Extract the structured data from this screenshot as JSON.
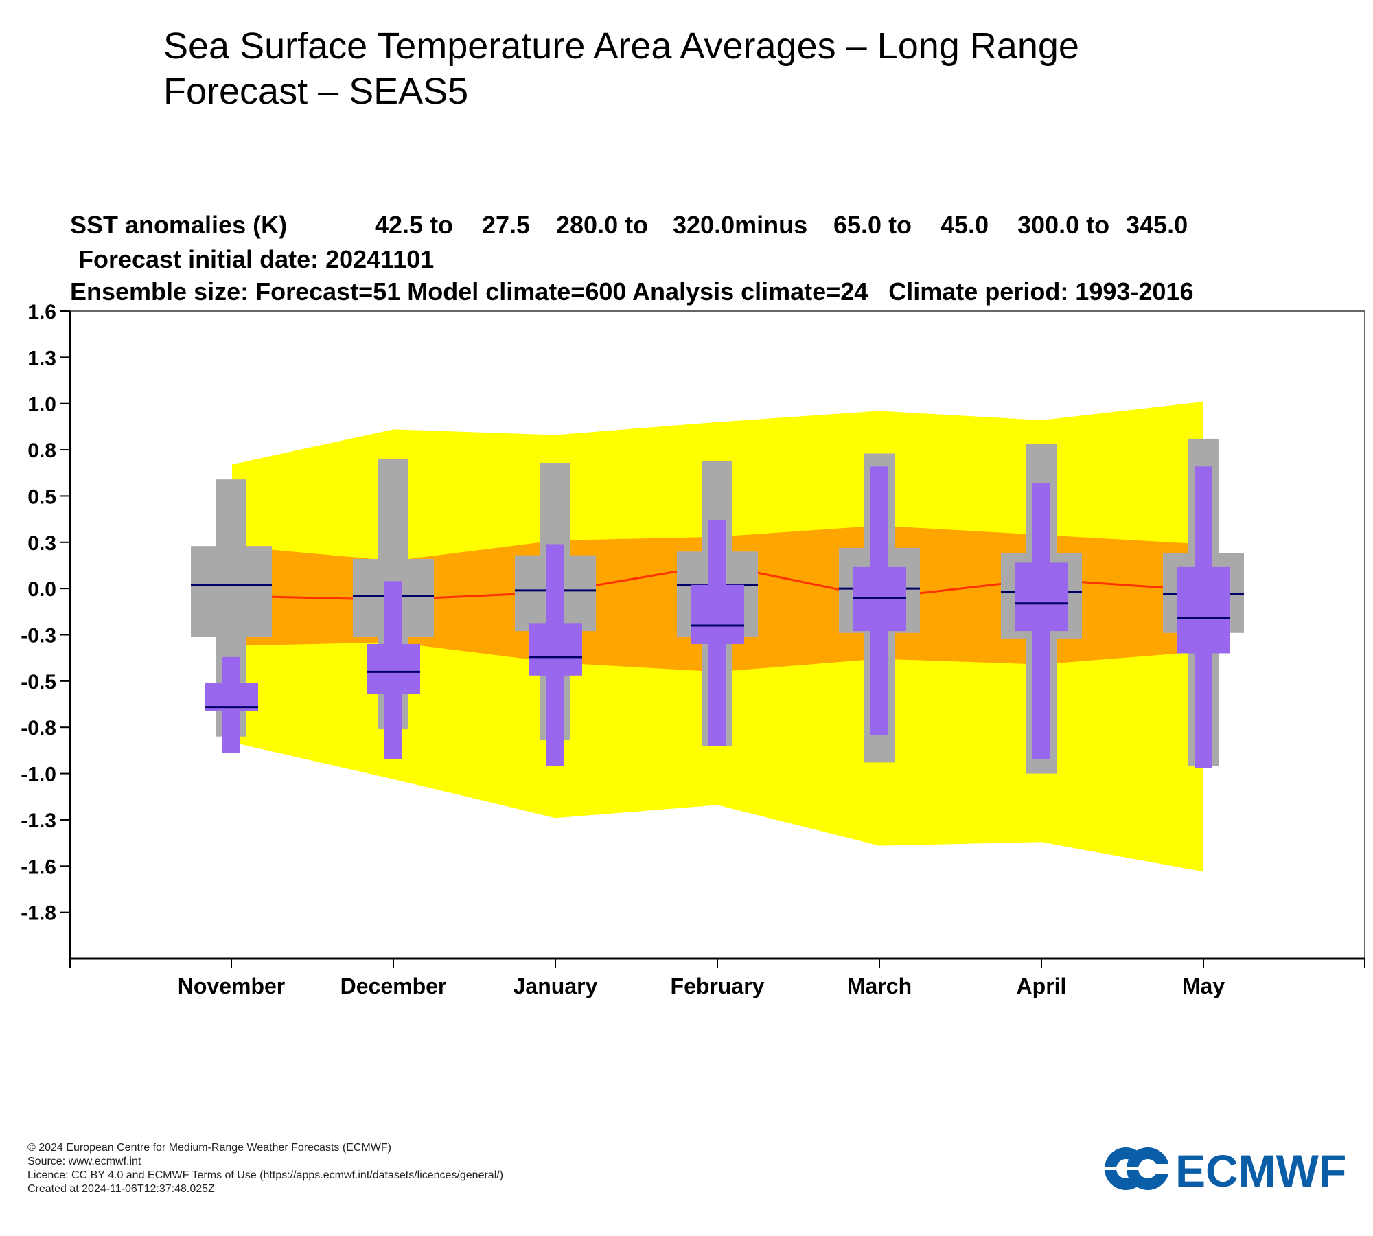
{
  "title": "Sea Surface Temperature Area Averages – Long Range Forecast – SEAS5",
  "header": {
    "line1": [
      "SST anomalies (K)",
      "42.5 to",
      "27.5",
      "280.0 to",
      "320.0minus",
      "65.0 to",
      "45.0",
      "300.0 to",
      "345.0"
    ],
    "line2": "Forecast initial date: 20241101",
    "line3": "Ensemble size: Forecast=51 Model climate=600 Analysis climate=24   Climate period: 1993-2016"
  },
  "chart_data": {
    "type": "box",
    "categories": [
      "November",
      "December",
      "January",
      "February",
      "March",
      "April",
      "May"
    ],
    "y_tick_labels": [
      "1.6",
      "1.3",
      "1.0",
      "0.8",
      "0.5",
      "0.3",
      "0.0",
      "-0.3",
      "-0.5",
      "-0.8",
      "-1.0",
      "-1.3",
      "-1.6",
      "-1.8"
    ],
    "ylim": [
      -1.95,
      1.55
    ],
    "climate_outer_band": {
      "color": "#ffff00",
      "upper": [
        0.72,
        0.91,
        0.88,
        0.95,
        1.01,
        0.96,
        1.06
      ],
      "lower": [
        -0.78,
        -0.98,
        -1.19,
        -1.12,
        -1.34,
        -1.32,
        -1.48
      ]
    },
    "climate_inner_band": {
      "color": "#ffa500",
      "upper": [
        0.28,
        0.2,
        0.31,
        0.33,
        0.39,
        0.34,
        0.29
      ],
      "lower": [
        -0.26,
        -0.24,
        -0.35,
        -0.4,
        -0.33,
        -0.36,
        -0.29
      ]
    },
    "climate_median": {
      "color": "#ff3300",
      "values": [
        0.01,
        -0.01,
        0.03,
        0.18,
        0.0,
        0.1,
        0.04
      ]
    },
    "model_climate_boxes": {
      "color": "#a9a9a9",
      "whisker_high": [
        0.64,
        0.75,
        0.73,
        0.74,
        0.78,
        0.83,
        0.86
      ],
      "q3": [
        0.28,
        0.21,
        0.23,
        0.25,
        0.27,
        0.24,
        0.24
      ],
      "median": [
        0.07,
        0.01,
        0.04,
        0.07,
        0.05,
        0.03,
        0.02
      ],
      "q1": [
        -0.21,
        -0.21,
        -0.18,
        -0.21,
        -0.19,
        -0.22,
        -0.19
      ],
      "whisker_low": [
        -0.75,
        -0.71,
        -0.77,
        -0.8,
        -0.89,
        -0.95,
        -0.91
      ]
    },
    "forecast_boxes": {
      "color": "#9966ee",
      "whisker_high": [
        -0.32,
        0.09,
        0.29,
        0.42,
        0.71,
        0.62,
        0.71
      ],
      "q3": [
        -0.46,
        -0.25,
        -0.14,
        0.07,
        0.17,
        0.19,
        0.17
      ],
      "median": [
        -0.59,
        -0.4,
        -0.32,
        -0.15,
        0.0,
        -0.03,
        -0.11
      ],
      "q1": [
        -0.61,
        -0.52,
        -0.42,
        -0.25,
        -0.18,
        -0.18,
        -0.3
      ],
      "whisker_low": [
        -0.84,
        -0.87,
        -0.91,
        -0.8,
        -0.74,
        -0.87,
        -0.92
      ]
    },
    "median_line_color": "#000066",
    "grid": false
  },
  "footer": {
    "copyright": "© 2024 European Centre for Medium-Range Weather Forecasts (ECMWF)",
    "source": "Source: www.ecmwf.int",
    "licence": "Licence: CC BY 4.0 and ECMWF Terms of Use (https://apps.ecmwf.int/datasets/licences/general/)",
    "created": "Created at 2024-11-06T12:37:48.025Z",
    "logo_text": "ECMWF",
    "logo_color": "#0a5ea8"
  }
}
